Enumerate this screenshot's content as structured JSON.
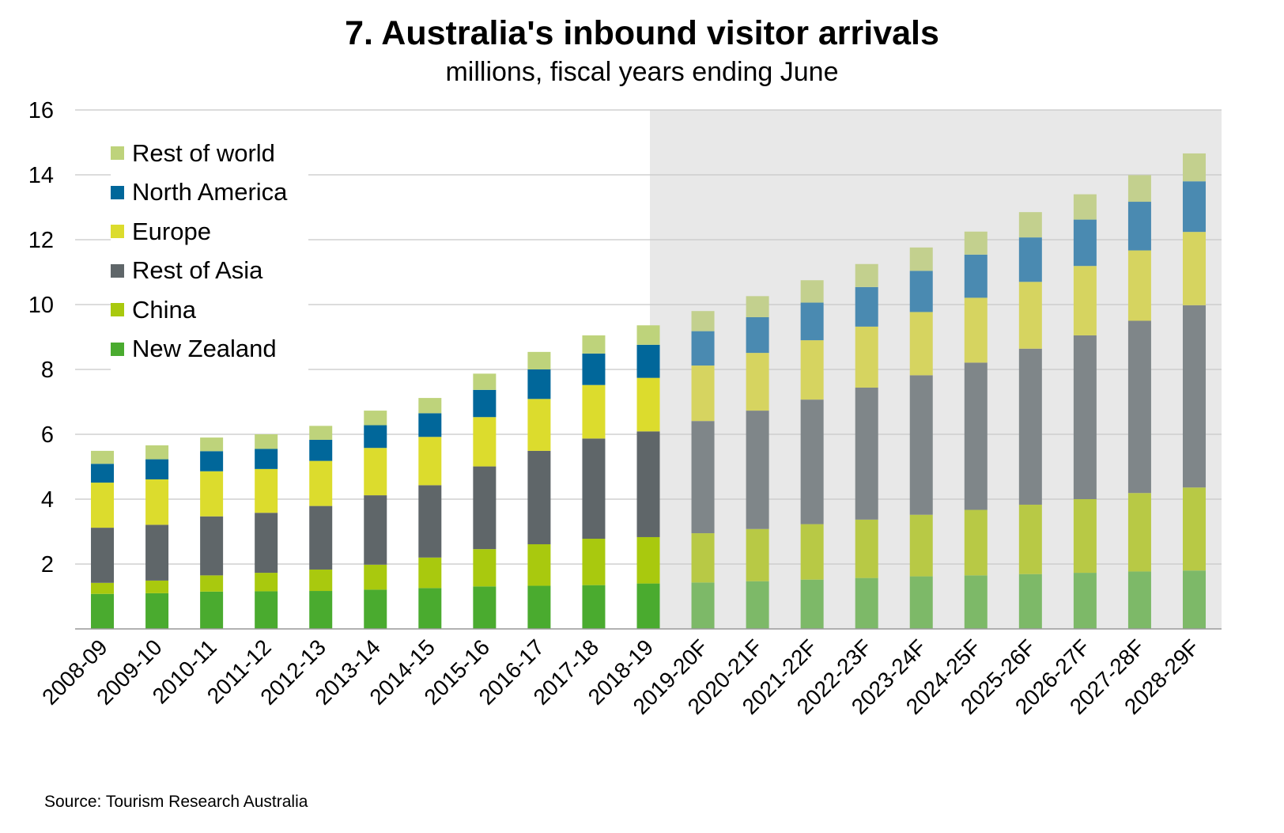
{
  "title": "7. Australia's inbound visitor arrivals",
  "subtitle": "millions, fiscal years ending June",
  "source": "Source: Tourism Research Australia",
  "chart_data": {
    "type": "bar",
    "stacked": true,
    "title": "7. Australia's inbound visitor arrivals",
    "subtitle": "millions, fiscal years ending June",
    "ylim": [
      0,
      16
    ],
    "yticks": [
      2,
      4,
      6,
      8,
      10,
      12,
      14,
      16
    ],
    "grid": true,
    "legend_position": "top-left",
    "forecast_shading_from": "2019-20F",
    "categories": [
      "2008-09",
      "2009-10",
      "2010-11",
      "2011-12",
      "2012-13",
      "2013-14",
      "2014-15",
      "2015-16",
      "2016-17",
      "2017-18",
      "2018-19",
      "2019-20F",
      "2020-21F",
      "2021-22F",
      "2022-23F",
      "2023-24F",
      "2024-25F",
      "2025-26F",
      "2026-27F",
      "2027-28F",
      "2028-29F"
    ],
    "series": [
      {
        "name": "New Zealand",
        "color": "#4aab2f",
        "forecast_color": "#7db968",
        "values": [
          1.08,
          1.1,
          1.15,
          1.16,
          1.17,
          1.21,
          1.26,
          1.31,
          1.33,
          1.35,
          1.4,
          1.43,
          1.47,
          1.52,
          1.57,
          1.62,
          1.65,
          1.69,
          1.73,
          1.77,
          1.8
        ]
      },
      {
        "name": "China",
        "color": "#a9c90e",
        "forecast_color": "#b8c945",
        "values": [
          0.34,
          0.39,
          0.5,
          0.57,
          0.66,
          0.77,
          0.94,
          1.15,
          1.28,
          1.43,
          1.43,
          1.52,
          1.61,
          1.71,
          1.8,
          1.9,
          2.02,
          2.14,
          2.27,
          2.42,
          2.56
        ]
      },
      {
        "name": "Rest of Asia",
        "color": "#5f6669",
        "forecast_color": "#7f8689",
        "values": [
          1.7,
          1.72,
          1.82,
          1.85,
          1.96,
          2.14,
          2.23,
          2.55,
          2.88,
          3.09,
          3.26,
          3.46,
          3.65,
          3.84,
          4.07,
          4.3,
          4.54,
          4.81,
          5.05,
          5.31,
          5.62
        ]
      },
      {
        "name": "Europe",
        "color": "#dcdc2d",
        "forecast_color": "#d6d460",
        "values": [
          1.39,
          1.4,
          1.39,
          1.35,
          1.39,
          1.46,
          1.49,
          1.52,
          1.6,
          1.65,
          1.65,
          1.71,
          1.78,
          1.83,
          1.88,
          1.95,
          2.0,
          2.06,
          2.14,
          2.17,
          2.26
        ]
      },
      {
        "name": "North America",
        "color": "#01679a",
        "forecast_color": "#4a8ab1",
        "values": [
          0.58,
          0.62,
          0.62,
          0.62,
          0.65,
          0.7,
          0.73,
          0.84,
          0.91,
          0.97,
          1.02,
          1.06,
          1.1,
          1.16,
          1.22,
          1.27,
          1.33,
          1.37,
          1.43,
          1.5,
          1.56
        ]
      },
      {
        "name": "Rest of world",
        "color": "#bed37b",
        "forecast_color": "#c3d08e",
        "values": [
          0.4,
          0.43,
          0.42,
          0.45,
          0.43,
          0.45,
          0.47,
          0.5,
          0.54,
          0.56,
          0.6,
          0.62,
          0.65,
          0.69,
          0.71,
          0.72,
          0.71,
          0.78,
          0.78,
          0.82,
          0.86
        ]
      }
    ]
  }
}
